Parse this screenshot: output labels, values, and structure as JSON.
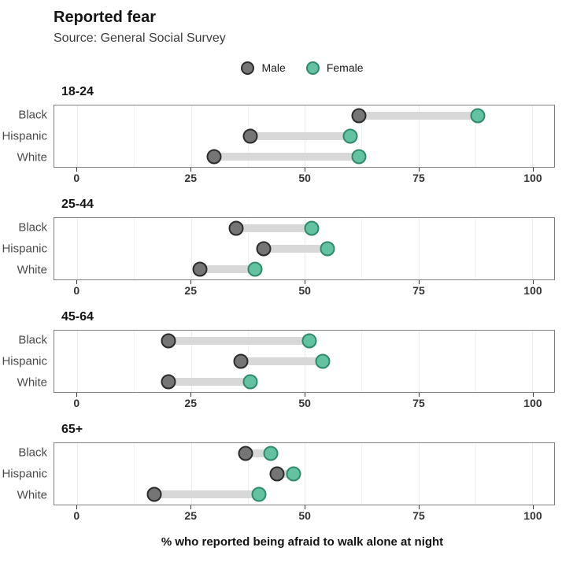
{
  "header": {
    "title": "Reported fear",
    "source": "Source: General Social Survey"
  },
  "legend": {
    "items": [
      {
        "label": "Male",
        "fill": "#757575",
        "stroke": "#2b2b2b"
      },
      {
        "label": "Female",
        "fill": "#63c3a1",
        "stroke": "#2f8a6d"
      }
    ]
  },
  "chart_data": {
    "type": "dumbbell",
    "title": "Reported fear",
    "subtitle": "Source: General Social Survey",
    "xlabel": "% who reported being afraid to walk alone at night",
    "ylabel": "",
    "xlim": [
      0,
      100
    ],
    "xticks": [
      0,
      25,
      50,
      75,
      100
    ],
    "minor_ticks": [
      12.5,
      37.5,
      62.5,
      87.5
    ],
    "grid": "vertical",
    "legend_position": "top-center",
    "series_names": [
      "Male",
      "Female"
    ],
    "panels": [
      {
        "age_group": "18-24",
        "rows": [
          {
            "group": "Black",
            "male": 62,
            "female": 88
          },
          {
            "group": "Hispanic",
            "male": 38,
            "female": 60
          },
          {
            "group": "White",
            "male": 30,
            "female": 62
          }
        ]
      },
      {
        "age_group": "25-44",
        "rows": [
          {
            "group": "Black",
            "male": 35,
            "female": 51.5
          },
          {
            "group": "Hispanic",
            "male": 41,
            "female": 55
          },
          {
            "group": "White",
            "male": 27,
            "female": 39
          }
        ]
      },
      {
        "age_group": "45-64",
        "rows": [
          {
            "group": "Black",
            "male": 20,
            "female": 51
          },
          {
            "group": "Hispanic",
            "male": 36,
            "female": 54
          },
          {
            "group": "White",
            "male": 20,
            "female": 38
          }
        ]
      },
      {
        "age_group": "65+",
        "rows": [
          {
            "group": "Black",
            "male": 37,
            "female": 42.5
          },
          {
            "group": "Hispanic",
            "male": 44,
            "female": 47.5
          },
          {
            "group": "White",
            "male": 17,
            "female": 40
          }
        ]
      }
    ],
    "colors": {
      "male_fill": "#757575",
      "male_stroke": "#2b2b2b",
      "female_fill": "#63c3a1",
      "female_stroke": "#2f8a6d",
      "connector": "#d8d8d8",
      "panel_border": "#7f7f7f",
      "grid_major": "#ececec",
      "grid_minor": "#f3f3f3"
    }
  }
}
